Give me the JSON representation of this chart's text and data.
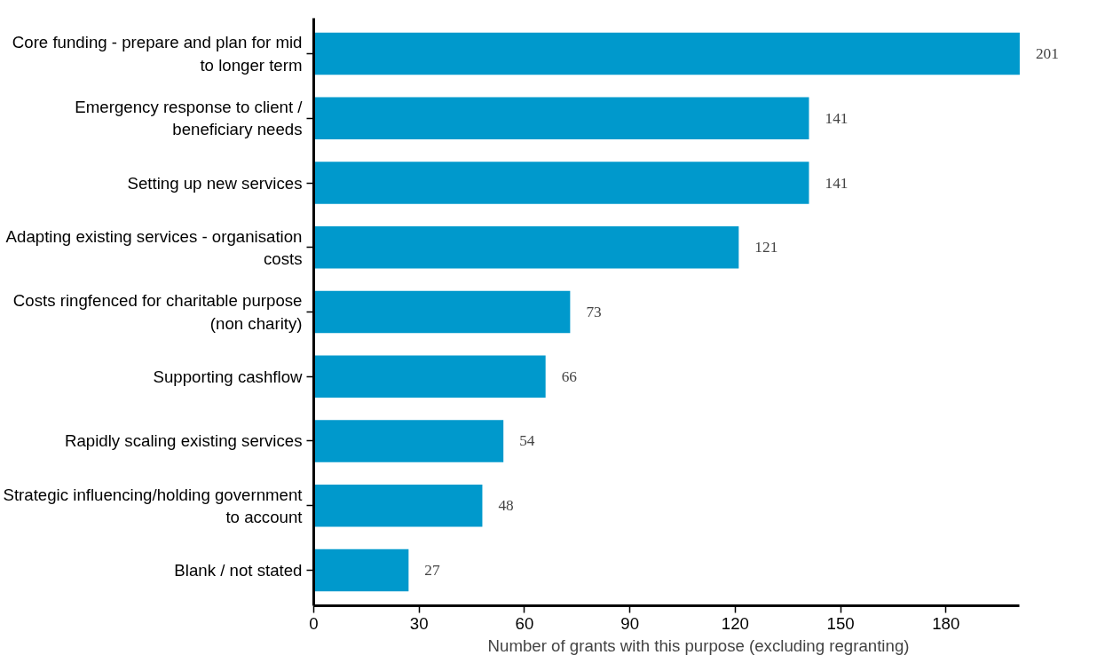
{
  "chart_data": {
    "type": "bar",
    "orientation": "horizontal",
    "xlabel": "Number of grants with this purpose (excluding regranting)",
    "categories": [
      "Core funding - prepare and plan for mid\nto longer term",
      "Emergency response to client /\nbeneficiary needs",
      "Setting up new services",
      "Adapting existing services - organisation\ncosts",
      "Costs ringfenced for charitable purpose\n(non charity)",
      "Supporting cashflow",
      "Rapidly scaling existing services",
      "Strategic influencing/holding government\nto account",
      "Blank / not stated"
    ],
    "values": [
      201,
      141,
      141,
      121,
      73,
      66,
      54,
      48,
      27
    ],
    "color": "#0099cc",
    "data_labels": true,
    "xlim": [
      0,
      201
    ],
    "xticks": [
      0,
      30,
      60,
      90,
      120,
      150,
      180
    ],
    "grid": false
  }
}
